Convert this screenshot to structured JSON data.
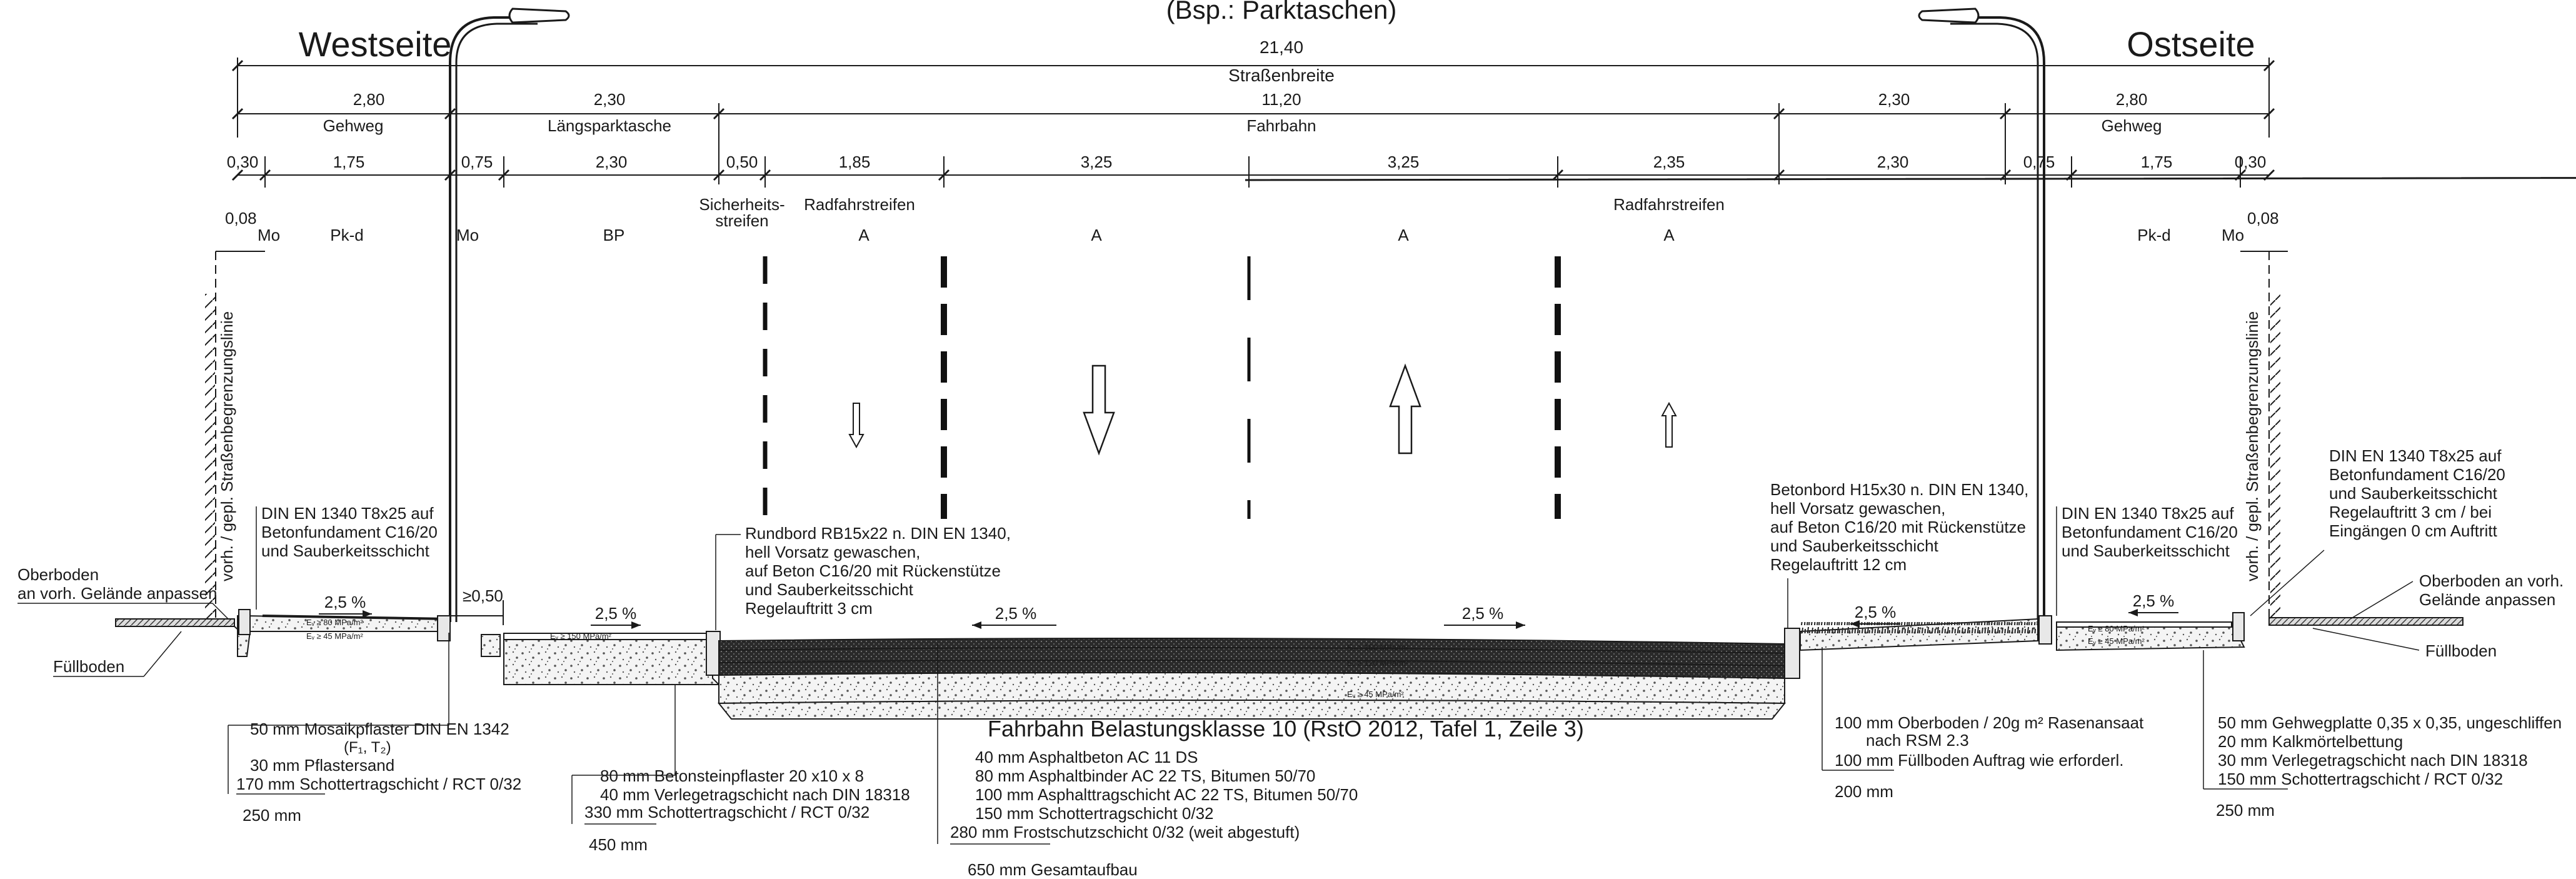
{
  "header": {
    "subtitle": "(Bsp.: Parktaschen)",
    "west_title": "Westseite",
    "east_title": "Ostseite"
  },
  "dimensions": {
    "total": {
      "value": "21,40",
      "label": "Straßenbreite"
    },
    "level2": [
      {
        "value": "2,80",
        "label": "Gehweg"
      },
      {
        "value": "2,30",
        "label": "Längsparktasche"
      },
      {
        "value": "11,20",
        "label": "Fahrbahn"
      },
      {
        "value": "2,30",
        "label": ""
      },
      {
        "value": "2,80",
        "label": "Gehweg"
      }
    ],
    "level3": [
      "0,30",
      "1,75",
      "0,75",
      "2,30",
      "0,50",
      "1,85",
      "3,25",
      "3,25",
      "2,35",
      "2,30",
      "0,75",
      "1,75",
      "0,30"
    ],
    "small_left": "0,08",
    "small_right": "0,08"
  },
  "zones": {
    "labels": [
      "Sicherheits-",
      "streifen",
      "Radfahrstreifen",
      "Radfahrstreifen"
    ],
    "codes": [
      "Mo",
      "Pk-d",
      "Mo",
      "BP",
      "A",
      "A",
      "A",
      "A",
      "Pk-d",
      "Mo"
    ]
  },
  "boundary_label": "vorh. / gepl. Straßenbegrenzungslinie",
  "annotations": {
    "west_kerb": [
      "DIN EN 1340 T8x25 auf",
      "Betonfundament C16/20",
      "und Sauberkeitsschicht"
    ],
    "rundbord": [
      "Rundbord RB15x22 n. DIN EN 1340,",
      "hell Vorsatz gewaschen,",
      "auf Beton C16/20 mit Rückenstütze",
      "und Sauberkeitsschicht",
      "Regelauftritt 3 cm"
    ],
    "betonbord": [
      "Betonbord H15x30 n. DIN EN 1340,",
      "hell Vorsatz gewaschen,",
      "auf Beton C16/20 mit Rückenstütze",
      "und Sauberkeitsschicht",
      "Regelauftritt 12 cm"
    ],
    "east_kerb_inner": [
      "DIN EN 1340 T8x25 auf",
      "Betonfundament C16/20",
      "und Sauberkeitsschicht"
    ],
    "east_kerb_outer": [
      "DIN EN 1340 T8x25 auf",
      "Betonfundament C16/20",
      "und Sauberkeitsschicht",
      "Regelauftritt 3 cm / bei",
      "Eingängen 0 cm Auftritt"
    ],
    "topsoil_left": [
      "Oberboden",
      "an vorh. Gelände anpassen"
    ],
    "topsoil_right": [
      "Oberboden an vorh.",
      "Gelände anpassen"
    ],
    "fill_left": "Füllboden",
    "fill_right": "Füllboden",
    "min_width": "≥0,50"
  },
  "slopes": [
    "2,5 %",
    "2,5 %",
    "2,5 %",
    "2,5 %",
    "2,5 %"
  ],
  "ev_values": [
    "Eᵥ ≥ 80 MPa/m²",
    "Eᵥ ≥ 45 MPa/m²",
    "Eᵥ ≥ 150 MPa/m²",
    "Eᵥ ≥ 150 MPa/m²",
    "Eᵥ ≥ 120 MPa/m²",
    "Eᵥ ≥ 45 MPa/m²",
    "Eᵥ ≥ 80 MPa/m²",
    "Eᵥ ≥ 45 MPa/m²"
  ],
  "buildups": {
    "gehweg_west": {
      "lines": [
        "50 mm Mosaikpflaster DIN EN 1342",
        "(F₁, T₂)",
        "30 mm Pflastersand",
        "170 mm Schottertragschicht / RCT 0/32"
      ],
      "total": "250 mm"
    },
    "parking": {
      "lines": [
        "80 mm Betonsteinpflaster 20 x10 x 8",
        "40 mm Verlegetragschicht nach DIN 18318",
        "330 mm Schottertragschicht / RCT 0/32"
      ],
      "total": "450 mm"
    },
    "fahrbahn": {
      "title": "Fahrbahn Belastungsklasse 10 (RstO 2012, Tafel 1, Zeile 3)",
      "lines": [
        "40 mm Asphaltbeton AC 11 DS",
        "80 mm Asphaltbinder AC 22 TS, Bitumen 50/70",
        "100 mm Asphalttragschicht AC 22 TS, Bitumen 50/70",
        "150 mm Schottertragschicht 0/32",
        "280 mm Frostschutzschicht 0/32 (weit abgestuft)"
      ],
      "total": "650 mm Gesamtaufbau"
    },
    "green": {
      "lines": [
        "100 mm Oberboden / 20g m² Rasenansaat",
        "nach RSM 2.3",
        "100 mm Füllboden Auftrag wie erforderl."
      ],
      "total": "200 mm"
    },
    "gehweg_east": {
      "lines": [
        "50 mm Gehwegplatte 0,35 x 0,35, ungeschliffen",
        "20 mm Kalkmörtelbettung",
        "30 mm Verlegetragschicht nach DIN 18318",
        "150 mm Schottertragschicht / RCT 0/32"
      ],
      "total": "250 mm"
    }
  }
}
